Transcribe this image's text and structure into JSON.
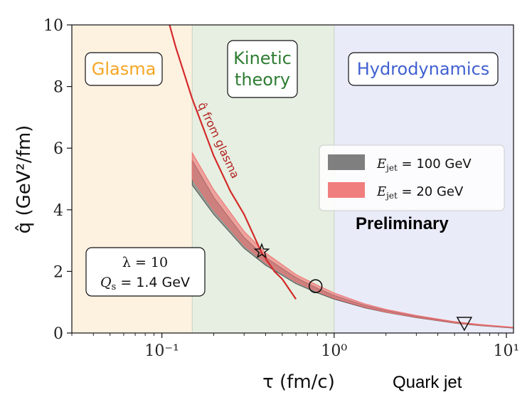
{
  "chart_data": {
    "type": "line",
    "x_scale": "log",
    "xlim": [
      0.03,
      11
    ],
    "ylim": [
      0,
      10
    ],
    "xlabel": "τ (fm/c)",
    "ylabel": "q̂ (GeV²/fm)",
    "x_ticks": [
      {
        "value": 0.1,
        "label": "10⁻¹"
      },
      {
        "value": 1,
        "label": "10⁰"
      },
      {
        "value": 10,
        "label": "10¹"
      }
    ],
    "y_ticks": [
      0,
      2,
      4,
      6,
      8,
      10
    ],
    "regions": [
      {
        "name": "Glasma",
        "x_range": [
          0.03,
          0.15
        ],
        "color": "#fdf1e0",
        "label_color": "#f5a623"
      },
      {
        "name": "Kinetic theory",
        "x_range": [
          0.15,
          1.0
        ],
        "color": "#e6efe1",
        "label_color": "#2e7d32"
      },
      {
        "name": "Hydrodynamics",
        "x_range": [
          1.0,
          11
        ],
        "color": "#e9ecf8",
        "label_color": "#4060d0"
      }
    ],
    "series": [
      {
        "name": "E_jet = 100 GeV",
        "color": "#555555",
        "x": [
          0.15,
          0.2,
          0.3,
          0.4,
          0.6,
          0.8,
          1.0,
          1.5,
          2.0,
          3.0,
          5.0,
          7.0,
          11.0
        ],
        "lower": [
          4.8,
          3.85,
          2.75,
          2.2,
          1.6,
          1.3,
          1.1,
          0.82,
          0.67,
          0.5,
          0.32,
          0.24,
          0.16
        ],
        "upper": [
          5.6,
          4.4,
          3.1,
          2.45,
          1.8,
          1.45,
          1.22,
          0.9,
          0.73,
          0.54,
          0.35,
          0.26,
          0.18
        ]
      },
      {
        "name": "E_jet = 20 GeV",
        "color": "#f07070",
        "x": [
          0.15,
          0.2,
          0.3,
          0.4,
          0.6,
          0.8,
          1.0,
          1.5,
          2.0,
          3.0,
          5.0,
          7.0,
          11.0
        ],
        "lower": [
          5.0,
          4.0,
          2.85,
          2.28,
          1.66,
          1.35,
          1.13,
          0.84,
          0.68,
          0.51,
          0.33,
          0.25,
          0.17
        ],
        "upper": [
          5.85,
          4.65,
          3.3,
          2.6,
          1.9,
          1.55,
          1.3,
          0.95,
          0.77,
          0.57,
          0.37,
          0.28,
          0.19
        ]
      },
      {
        "name": "q̂ from glasma",
        "color": "#d42a2a",
        "x": [
          0.1,
          0.12,
          0.15,
          0.2,
          0.25,
          0.3,
          0.38,
          0.45,
          0.5,
          0.6
        ],
        "y": [
          10.9,
          9.3,
          7.6,
          5.75,
          4.6,
          3.85,
          2.6,
          2.0,
          1.75,
          1.1
        ]
      }
    ],
    "markers": [
      {
        "symbol": "star",
        "x": 0.38,
        "y": 2.65
      },
      {
        "symbol": "circle",
        "x": 0.78,
        "y": 1.52
      },
      {
        "symbol": "triangle-down",
        "x": 5.7,
        "y": 0.3
      }
    ],
    "legend": {
      "placement": "center-right",
      "entries": [
        {
          "math_var": "E",
          "math_sub": "jet",
          "rest": " = 100 GeV",
          "color": "#555555"
        },
        {
          "math_var": "E",
          "math_sub": "jet",
          "rest": " = 20 GeV",
          "color": "#f07070"
        }
      ]
    },
    "annotations": {
      "glasma_curve_label": "q̂ from glasma",
      "params_line1": "λ = 10",
      "params_line2_var": "Q",
      "params_line2_sub": "s",
      "params_line2_rest": " = 1.4 GeV",
      "preliminary": "Preliminary",
      "quark_jet": "Quark jet"
    },
    "grid": false
  }
}
